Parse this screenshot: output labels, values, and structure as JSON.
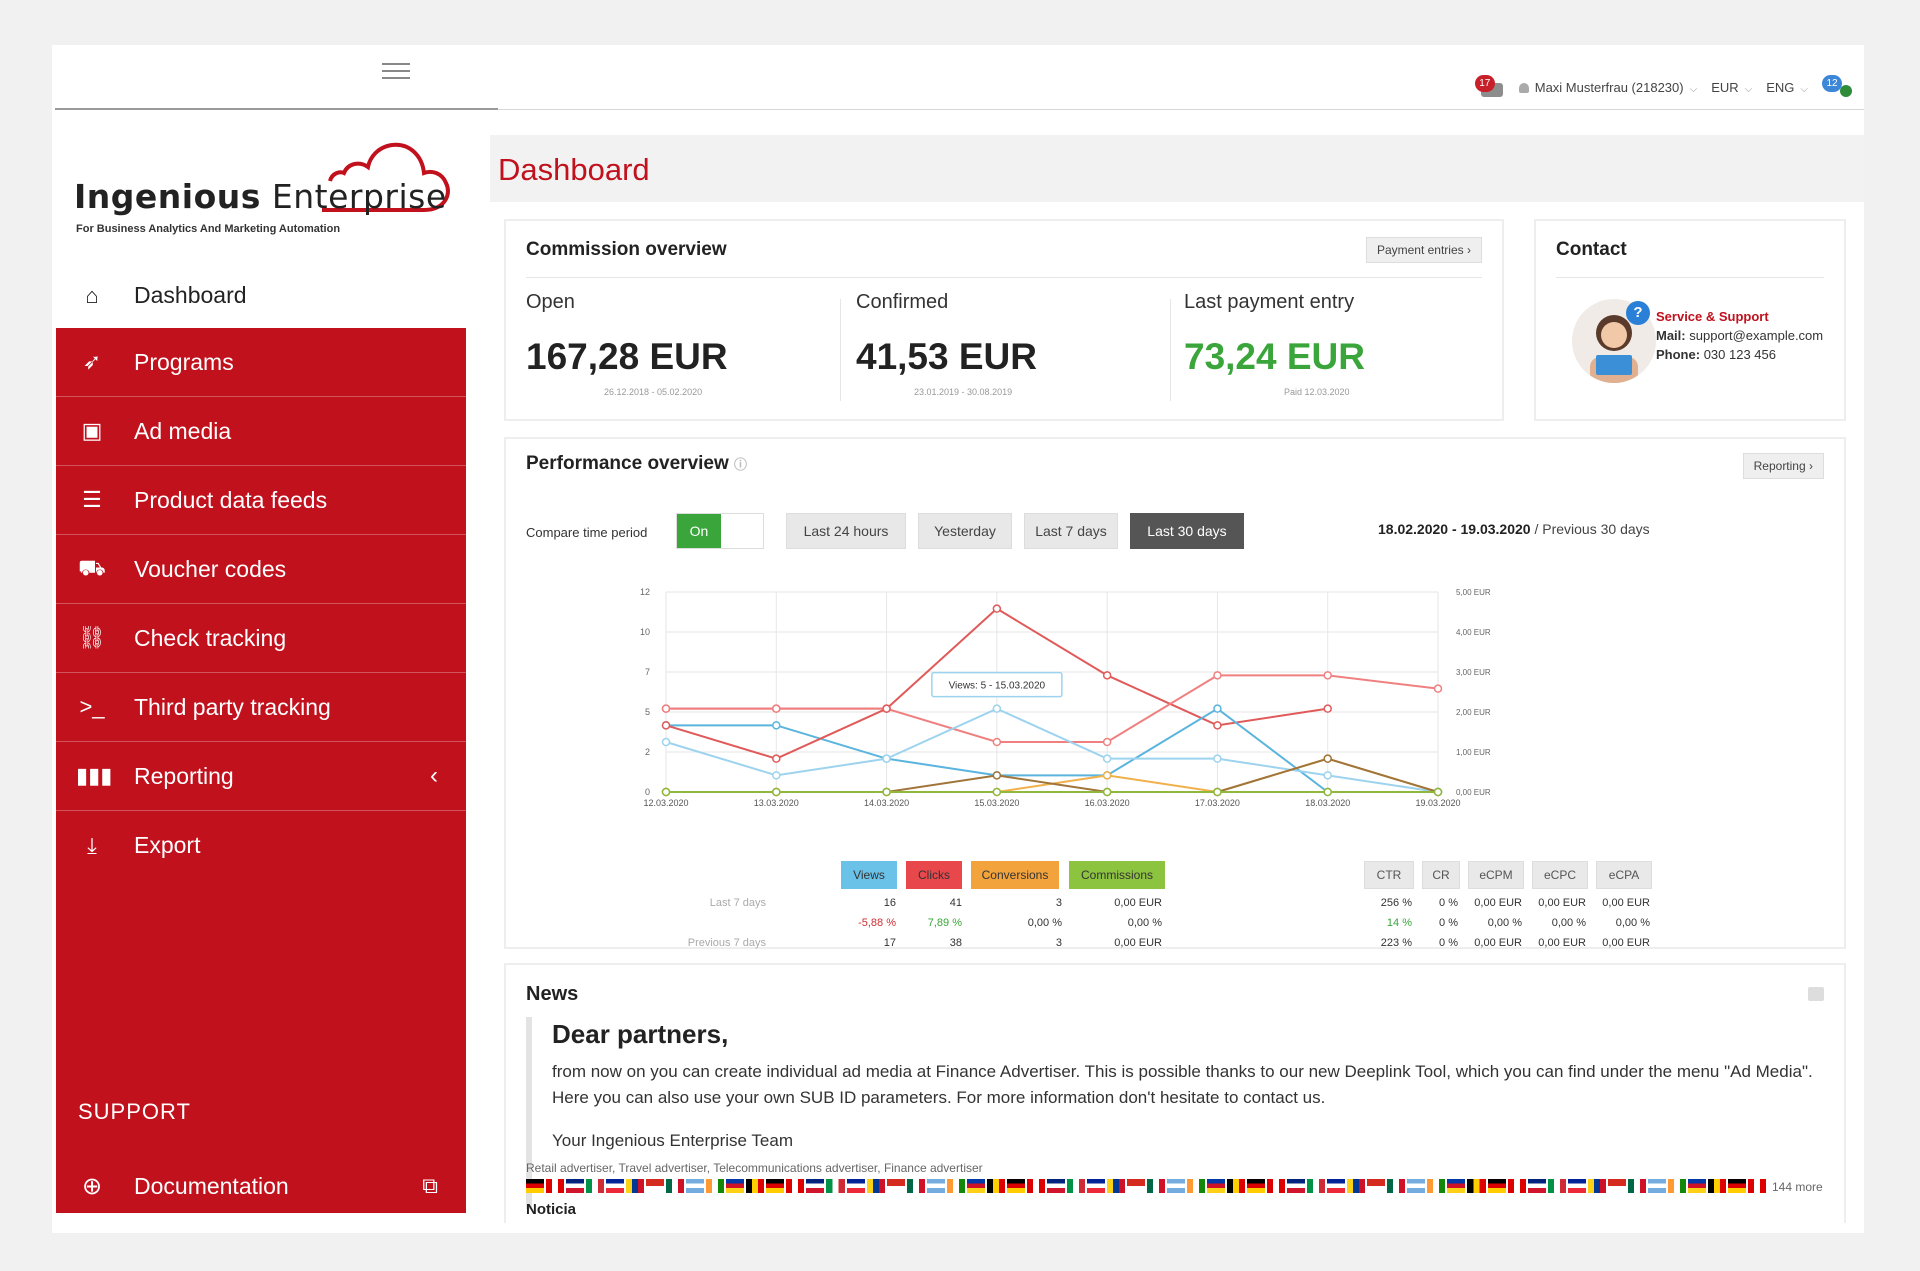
{
  "header": {
    "notifications_count": "17",
    "user": "Maxi Musterfrau (218230)",
    "currency": "EUR",
    "language": "ENG",
    "messages_count": "12"
  },
  "brand": {
    "name_part1": "Ingenious",
    "name_part2": "Enterprise",
    "tagline": "For Business Analytics And Marketing Automation",
    "accent_color": "#c0111d"
  },
  "sidebar": {
    "home": {
      "label": "Dashboard",
      "icon": "home-icon"
    },
    "items": [
      {
        "label": "Programs",
        "icon": "rocket-icon"
      },
      {
        "label": "Ad media",
        "icon": "image-file-icon"
      },
      {
        "label": "Product data feeds",
        "icon": "database-icon"
      },
      {
        "label": "Voucher codes",
        "icon": "cart-icon"
      },
      {
        "label": "Check tracking",
        "icon": "broken-link-icon"
      },
      {
        "label": "Third party tracking",
        "icon": "terminal-icon"
      },
      {
        "label": "Reporting",
        "icon": "bar-chart-icon"
      },
      {
        "label": "Export",
        "icon": "download-icon"
      }
    ],
    "support_heading": "SUPPORT",
    "documentation": "Documentation"
  },
  "page": {
    "title": "Dashboard"
  },
  "commission": {
    "title": "Commission overview",
    "button": "Payment entries",
    "open": {
      "label": "Open",
      "value": "167,28 EUR",
      "sub": "26.12.2018 - 05.02.2020"
    },
    "confirmed": {
      "label": "Confirmed",
      "value": "41,53 EUR",
      "sub": "23.01.2019 - 30.08.2019"
    },
    "last_payment": {
      "label": "Last payment entry",
      "value": "73,24 EUR",
      "sub": "Paid 12.03.2020"
    }
  },
  "contact": {
    "title": "Contact",
    "service": "Service & Support",
    "mail_label": "Mail:",
    "mail": "support@example.com",
    "phone_label": "Phone:",
    "phone": "030 123 456"
  },
  "performance": {
    "title": "Performance overview",
    "button": "Reporting",
    "compare_label": "Compare time period",
    "toggle": "On",
    "periods": [
      "Last 24 hours",
      "Yesterday",
      "Last 7 days",
      "Last 30 days"
    ],
    "active_period": "Last 30 days",
    "range_bold": "18.02.2020 - 19.03.2020",
    "range_rest": " / Previous 30 days",
    "tooltip": "Views: 5 - 15.03.2020"
  },
  "chart_data": {
    "type": "line",
    "x": [
      "12.03.2020",
      "13.03.2020",
      "14.03.2020",
      "15.03.2020",
      "16.03.2020",
      "17.03.2020",
      "18.03.2020",
      "19.03.2020"
    ],
    "y_left_ticks": [
      "0",
      "2",
      "5",
      "7",
      "10",
      "12"
    ],
    "y_right_ticks": [
      "0,00 EUR",
      "1,00 EUR",
      "2,00 EUR",
      "3,00 EUR",
      "4,00 EUR",
      "5,00 EUR"
    ],
    "ylim": [
      0,
      12
    ],
    "grid": true,
    "series": [
      {
        "name": "Clicks",
        "color": "#e05a5a",
        "values": [
          5,
          5,
          5,
          11,
          7,
          4,
          5,
          null
        ]
      },
      {
        "name": "Clicks",
        "color": "#f08080",
        "values": [
          5,
          5,
          5,
          3,
          3,
          7,
          7,
          6.2
        ]
      },
      {
        "name": "Views",
        "color": "#5ab4de",
        "values": [
          4,
          4,
          2,
          1,
          1,
          5,
          0,
          0
        ]
      },
      {
        "name": "Views",
        "color": "#9dd3ee",
        "values": [
          3,
          1,
          2,
          5,
          2,
          2,
          1,
          0
        ]
      },
      {
        "name": "Clicks",
        "color": "#e05a5a",
        "values": [
          4,
          2,
          5,
          null,
          null,
          null,
          null,
          null
        ]
      },
      {
        "name": "Conversions",
        "color": "#f0b04a",
        "values": [
          0,
          0,
          0,
          0,
          1,
          0,
          2,
          0
        ]
      },
      {
        "name": "Conversions",
        "color": "#a0753a",
        "values": [
          0,
          0,
          0,
          1,
          0,
          0,
          2,
          0
        ]
      },
      {
        "name": "Commissions",
        "color": "#8fb83c",
        "values": [
          0,
          0,
          0,
          0,
          0,
          0,
          0,
          0
        ]
      }
    ]
  },
  "legend": [
    {
      "label": "Views",
      "color": "#6bc2e8"
    },
    {
      "label": "Clicks",
      "color": "#e8474c"
    },
    {
      "label": "Conversions",
      "color": "#f2a33c"
    },
    {
      "label": "Commissions",
      "color": "#8dc43f"
    }
  ],
  "kpi_headers": [
    "CTR",
    "CR",
    "eCPM",
    "eCPC",
    "eCPA"
  ],
  "stats": {
    "last7_label": "Last 7 days",
    "prev7_label": "Previous 7 days",
    "last7": [
      "16",
      "41",
      "3",
      "0,00 EUR"
    ],
    "change": [
      "-5,88 %",
      "7,89 %",
      "0,00 %",
      "0,00 %"
    ],
    "prev7": [
      "17",
      "38",
      "3",
      "0,00 EUR"
    ],
    "kpi_last7": [
      "256 %",
      "0 %",
      "0,00 EUR",
      "0,00 EUR",
      "0,00 EUR"
    ],
    "kpi_change": [
      "14 %",
      "0 %",
      "0,00 %",
      "0,00 %",
      "0,00 %"
    ],
    "kpi_prev7": [
      "223 %",
      "0 %",
      "0,00 EUR",
      "0,00 EUR",
      "0,00 EUR"
    ]
  },
  "news": {
    "title": "News",
    "heading": "Dear partners,",
    "body": "from now on you can create individual ad media at Finance Advertiser. This is possible thanks to our new Deeplink Tool, which you can find under the menu \"Ad Media\". Here you can also use your own SUB ID parameters. For more information don't hesitate to contact us.",
    "signature": "Your Ingenious Enterprise Team",
    "tags": "Retail advertiser, Travel advertiser, Telecommunications advertiser, Finance advertiser",
    "more": "144 more",
    "next_title": "Noticia"
  }
}
